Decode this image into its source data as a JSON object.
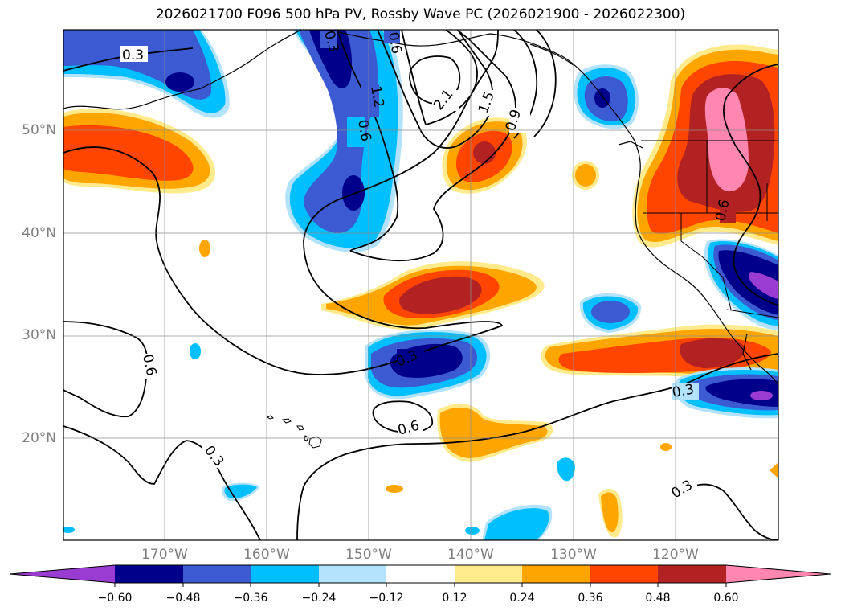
{
  "title": "2026021700 F096 500 hPa PV, Rossby Wave PC (2026021900 - 2026022300)",
  "map": {
    "lat_labels": [
      "50°N",
      "40°N",
      "30°N",
      "20°N"
    ],
    "lon_labels": [
      "170°W",
      "160°W",
      "150°W",
      "140°W",
      "130°W",
      "120°W"
    ],
    "contour_labels": [
      "0.3",
      "0.6",
      "1.2",
      "2.1",
      "1.5",
      "0.9",
      "0.6",
      "0.3",
      "0.6",
      "0.3",
      "0.6",
      "0.3",
      "0.3",
      "0.6",
      "0.3"
    ],
    "colors": {
      "neg_extreme": "#9a3cd2",
      "neg_060": "#00008b",
      "neg_048": "#3c5ad2",
      "neg_036": "#00bfff",
      "neg_024": "#b2e2fc",
      "neutral": "#ffffff",
      "pos_012": "#ffea8c",
      "pos_024": "#ffa500",
      "pos_036": "#ff4500",
      "pos_048": "#b22222",
      "pos_060": "#ff86b0"
    }
  },
  "colorbar": {
    "ticks": [
      "−0.60",
      "−0.48",
      "−0.36",
      "−0.24",
      "−0.12",
      "0.12",
      "0.24",
      "0.36",
      "0.48",
      "0.60"
    ],
    "segment_colors": [
      "#00008b",
      "#3c5ad2",
      "#00bfff",
      "#b2e2fc",
      "#ffffff",
      "#ffea8c",
      "#ffa500",
      "#ff4500",
      "#b22222"
    ],
    "under_color": "#9a3cd2",
    "over_color": "#ff86b0"
  }
}
